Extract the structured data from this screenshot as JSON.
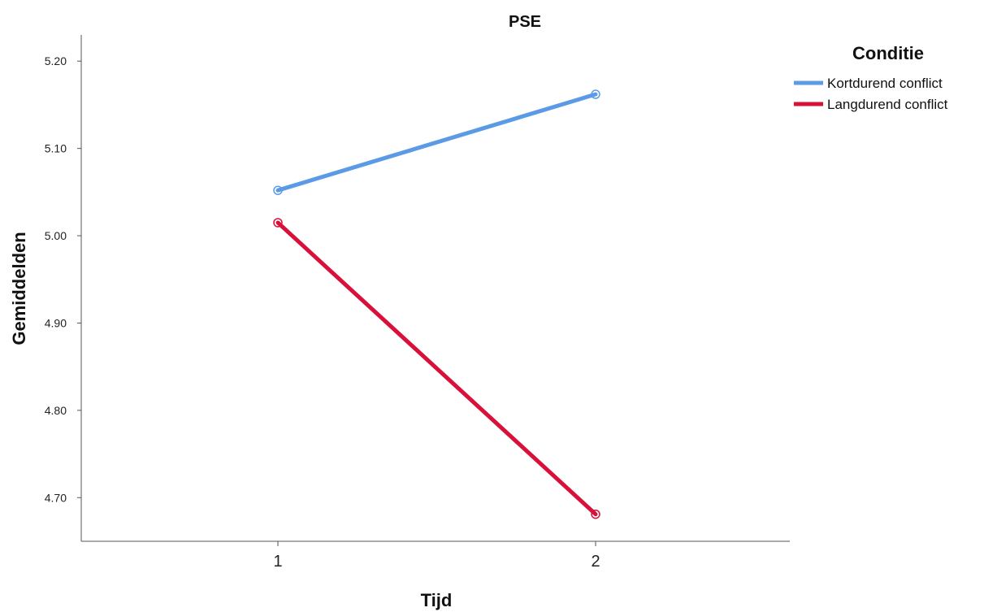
{
  "chart_data": {
    "type": "line",
    "title": "PSE",
    "xlabel": "Tijd",
    "ylabel": "Gemiddelden",
    "categories": [
      "1",
      "2"
    ],
    "ylim": [
      4.65,
      5.23
    ],
    "yticks": [
      "4.70",
      "4.80",
      "4.90",
      "5.00",
      "5.10",
      "5.20"
    ],
    "legend_title": "Conditie",
    "legend_position": "top-right",
    "grid": false,
    "series": [
      {
        "name": "Kortdurend conflict",
        "color": "#5b9be6",
        "values": [
          5.052,
          5.162
        ]
      },
      {
        "name": "Langdurend conflict",
        "color": "#d8103a",
        "values": [
          5.015,
          4.681
        ]
      }
    ]
  }
}
